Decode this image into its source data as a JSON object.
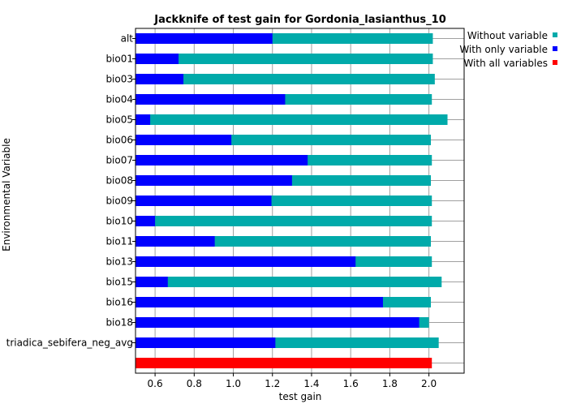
{
  "chart_data": {
    "type": "bar",
    "orientation": "horizontal",
    "title": "Jackknife of test gain for Gordonia_lasianthus_10",
    "xlabel": "test gain",
    "ylabel": "Environmental Variable",
    "xlim": [
      0.5,
      2.18
    ],
    "xticks": [
      0.6,
      0.8,
      1.0,
      1.2,
      1.4,
      1.6,
      1.8,
      2.0
    ],
    "xtick_labels": [
      "0.6",
      "0.8",
      "1.0",
      "1.2",
      "1.4",
      "1.6",
      "1.8",
      "2.0"
    ],
    "grid": true,
    "legend_position": "top-right",
    "categories": [
      "alt",
      "bio01",
      "bio03",
      "bio04",
      "bio05",
      "bio06",
      "bio07",
      "bio08",
      "bio09",
      "bio10",
      "bio11",
      "bio13",
      "bio15",
      "bio16",
      "bio18",
      "triadica_sebifera_neg_avg"
    ],
    "series": [
      {
        "name": "Without variable",
        "color": "#00aaaa",
        "values": [
          2.02,
          2.02,
          2.03,
          2.015,
          2.095,
          2.01,
          2.015,
          2.01,
          2.015,
          2.015,
          2.01,
          2.015,
          2.065,
          2.01,
          2.0,
          2.05
        ]
      },
      {
        "name": "With only variable",
        "color": "#0000ff",
        "values": [
          1.2,
          0.72,
          0.745,
          1.265,
          0.575,
          0.99,
          1.38,
          1.3,
          1.195,
          0.6,
          0.905,
          1.625,
          0.665,
          1.765,
          1.95,
          1.215
        ]
      },
      {
        "name": "With all variables",
        "color": "#ff0000",
        "value": 2.015
      }
    ]
  }
}
